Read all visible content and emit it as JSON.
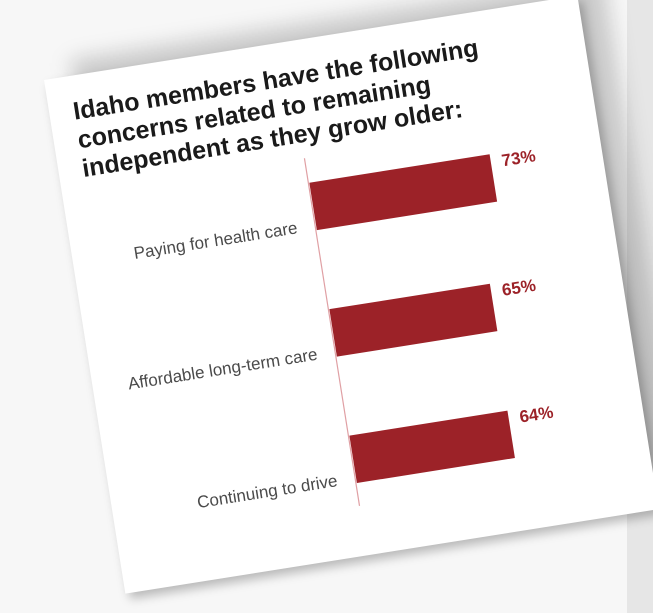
{
  "chart_data": {
    "type": "bar",
    "orientation": "horizontal",
    "title": "Idaho members have the following concerns related to remaining independent as they grow older:",
    "categories": [
      "Paying for health care",
      "Affordable long-term care",
      "Continuing to drive"
    ],
    "values": [
      73,
      65,
      64
    ],
    "value_labels": [
      "73%",
      "65%",
      "64%"
    ],
    "xlim": [
      0,
      100
    ],
    "bar_color": "#9c2228",
    "axis_color": "#e0a0a4",
    "label_color": "#9c2228",
    "grid": false
  }
}
